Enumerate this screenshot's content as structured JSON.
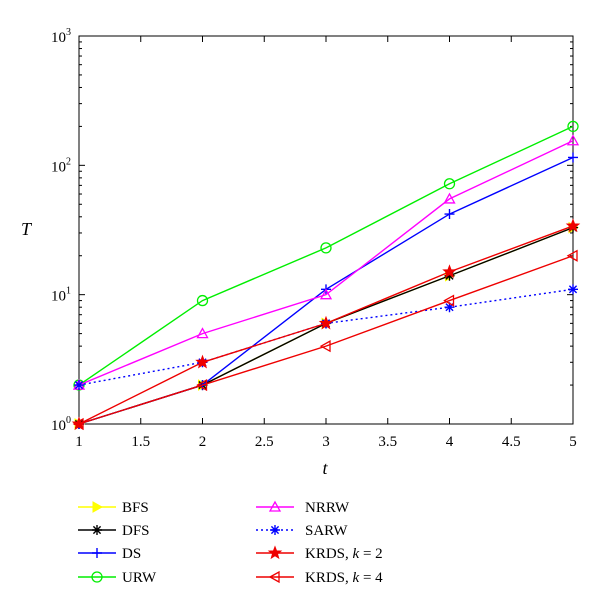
{
  "chart_data": {
    "type": "line",
    "yscale": "log",
    "title": "",
    "xlabel": "t",
    "ylabel": "T",
    "xlim": [
      1,
      5
    ],
    "ylim": [
      1,
      1000
    ],
    "x": [
      1,
      2,
      3,
      4,
      5
    ],
    "xticks": [
      "1",
      "1.5",
      "2",
      "2.5",
      "3",
      "3.5",
      "4",
      "4.5",
      "5"
    ],
    "yticks": [
      {
        "base": "10",
        "exp": "0"
      },
      {
        "base": "10",
        "exp": "1"
      },
      {
        "base": "10",
        "exp": "2"
      },
      {
        "base": "10",
        "exp": "3"
      }
    ],
    "series": [
      {
        "name": "BFS",
        "label": "BFS",
        "color": "#ffff00",
        "marker": "triangle-right",
        "dash": "solid",
        "values": [
          1,
          2,
          6,
          14,
          33
        ]
      },
      {
        "name": "DFS",
        "label": "DFS",
        "color": "#000000",
        "marker": "asterisk",
        "dash": "solid",
        "values": [
          1,
          2,
          6,
          14,
          33
        ]
      },
      {
        "name": "DS",
        "label": "DS",
        "color": "#0000ff",
        "marker": "plus",
        "dash": "solid",
        "values": [
          1,
          2,
          11,
          42,
          115
        ]
      },
      {
        "name": "URW",
        "label": "URW",
        "color": "#00ee00",
        "marker": "circle",
        "dash": "solid",
        "values": [
          2,
          9,
          23,
          72,
          200
        ]
      },
      {
        "name": "NRRW",
        "label": "NRRW",
        "color": "#ff00ff",
        "marker": "triangle-up",
        "dash": "solid",
        "values": [
          2,
          5,
          10,
          55,
          155
        ]
      },
      {
        "name": "SARW",
        "label": "SARW",
        "color": "#0000ff",
        "marker": "asterisk",
        "dash": "dotted",
        "values": [
          2,
          3,
          6,
          8,
          11
        ]
      },
      {
        "name": "KRDS k2",
        "label_main": "KRDS, ",
        "label_var": "k",
        "label_rest": " = 2",
        "color": "#ee0000",
        "marker": "star",
        "dash": "solid",
        "values": [
          1,
          3,
          6,
          15,
          34
        ]
      },
      {
        "name": "KRDS k4",
        "label_main": "KRDS, ",
        "label_var": "k",
        "label_rest": " = 4",
        "color": "#ee0000",
        "marker": "triangle-left",
        "dash": "solid",
        "values": [
          1,
          2,
          4,
          9,
          20
        ]
      }
    ],
    "legend": "below"
  }
}
